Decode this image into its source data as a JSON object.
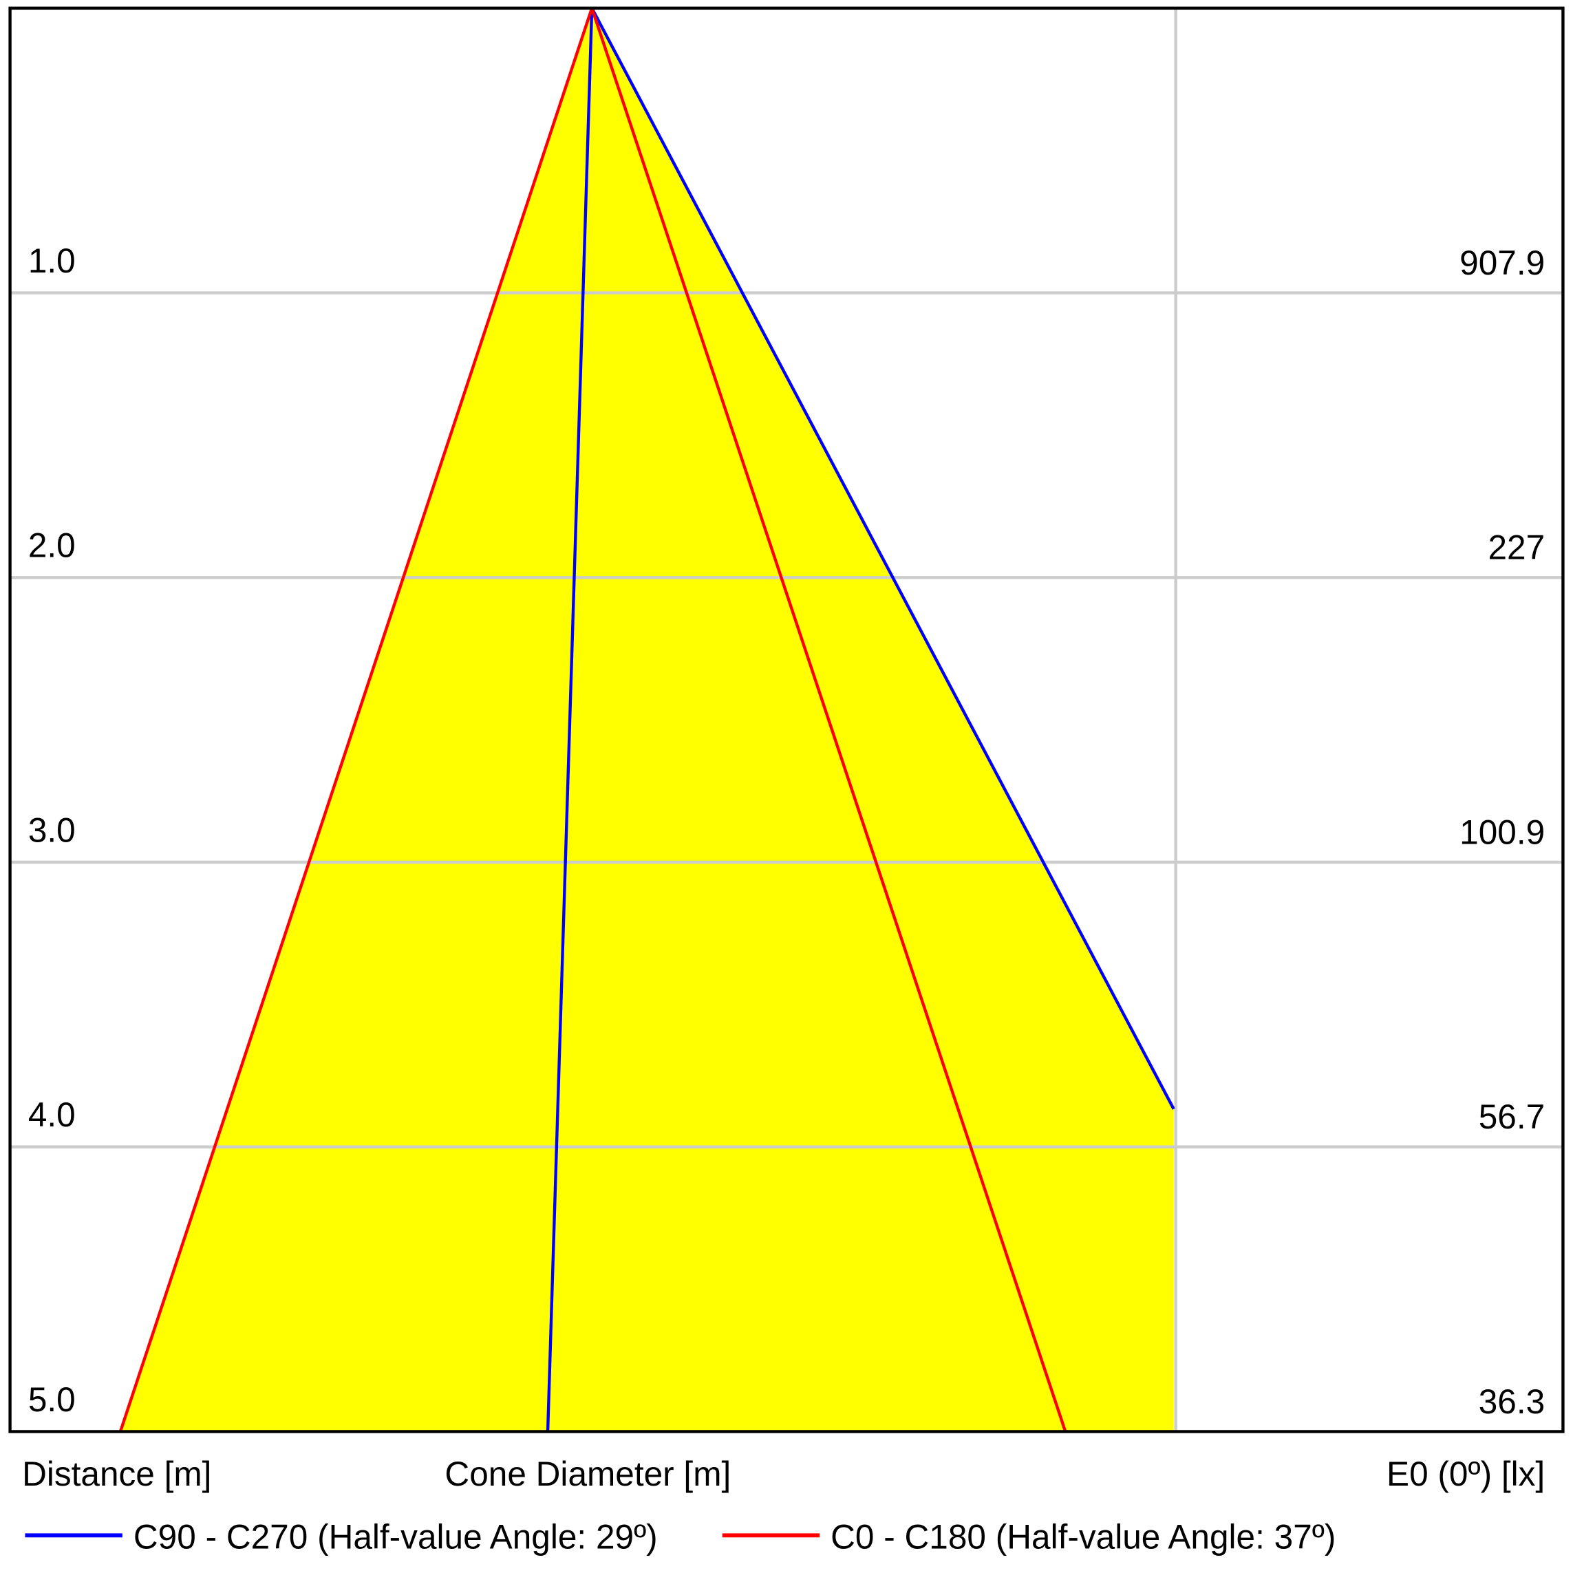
{
  "chart_data": {
    "type": "cone",
    "y_label": "Distance [m]",
    "x_label": "Cone Diameter [m]",
    "value_label": "E0 (0º) [lx]",
    "ylim": [
      0,
      5
    ],
    "yticks": [
      {
        "value": 1,
        "label": "1.0"
      },
      {
        "value": 2,
        "label": "2.0"
      },
      {
        "value": 3,
        "label": "3.0"
      },
      {
        "value": 4,
        "label": "4.0"
      },
      {
        "value": 5,
        "label": "5.0"
      }
    ],
    "values": [
      907.9,
      227,
      100.9,
      56.7,
      36.3
    ],
    "fill_color": "#ffff00",
    "grid": true,
    "series": [
      {
        "name": "C90 - C270 (Half-value Angle: 29º)",
        "color": "#0000ff"
      },
      {
        "name": "C0 - C180 (Half-value Angle: 37º)",
        "color": "#ff0000"
      }
    ]
  }
}
